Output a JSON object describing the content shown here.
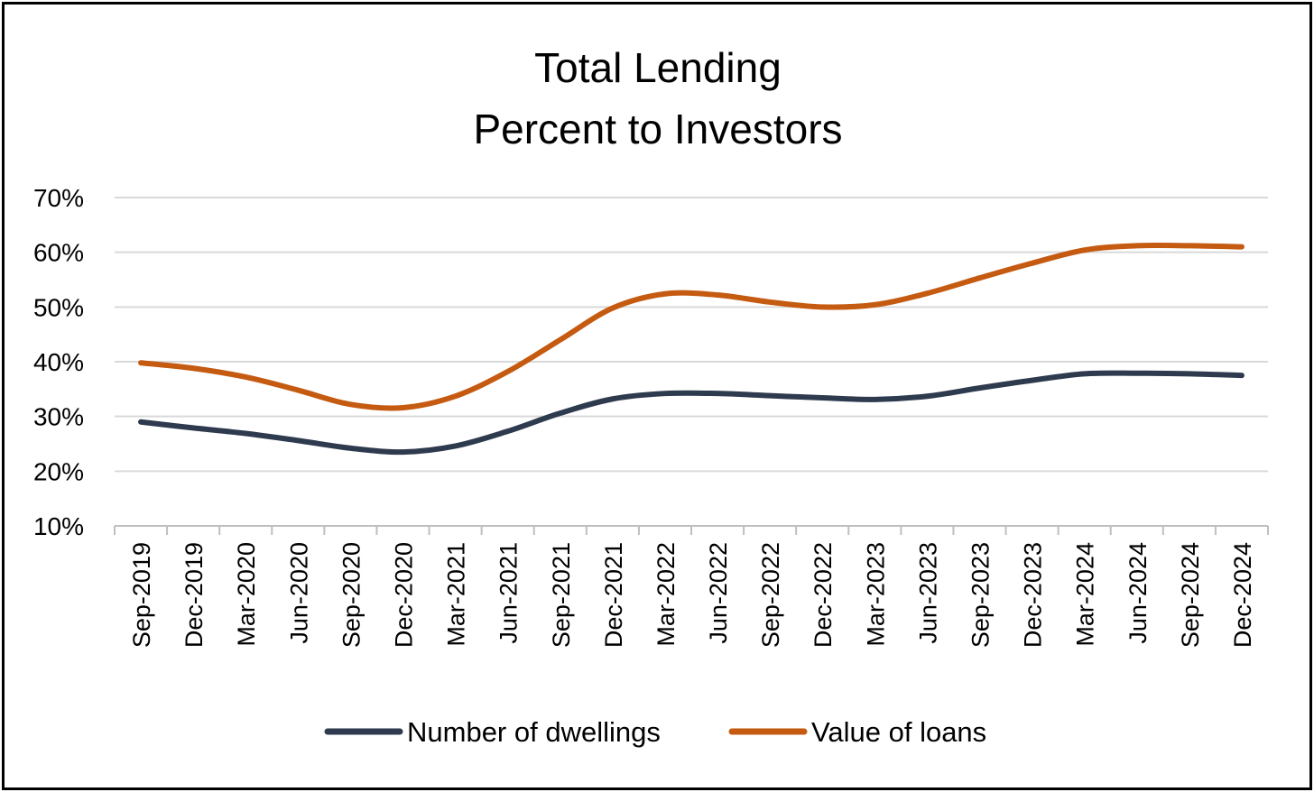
{
  "chart_data": {
    "type": "line",
    "title": "Total Lending",
    "subtitle": "Percent to Investors",
    "categories": [
      "Sep-2019",
      "Dec-2019",
      "Mar-2020",
      "Jun-2020",
      "Sep-2020",
      "Dec-2020",
      "Mar-2021",
      "Jun-2021",
      "Sep-2021",
      "Dec-2021",
      "Mar-2022",
      "Jun-2022",
      "Sep-2022",
      "Dec-2022",
      "Mar-2023",
      "Jun-2023",
      "Sep-2023",
      "Dec-2023",
      "Mar-2024",
      "Jun-2024",
      "Sep-2024",
      "Dec-2024"
    ],
    "yticks": [
      "10%",
      "20%",
      "30%",
      "40%",
      "50%",
      "60%",
      "70%"
    ],
    "ylim": [
      10,
      70
    ],
    "grid": true,
    "legend_position": "bottom",
    "series": [
      {
        "name": "Number of dwellings",
        "color": "#2e3a4e",
        "values": [
          29.0,
          27.9,
          26.9,
          25.6,
          24.2,
          23.5,
          24.6,
          27.3,
          30.6,
          33.2,
          34.2,
          34.2,
          33.8,
          33.4,
          33.1,
          33.7,
          35.2,
          36.6,
          37.8,
          37.9,
          37.8,
          37.5
        ]
      },
      {
        "name": "Value of loans",
        "color": "#c55a11",
        "values": [
          39.8,
          38.8,
          37.2,
          34.8,
          32.2,
          31.6,
          33.7,
          38.2,
          44.0,
          49.8,
          52.4,
          52.2,
          50.9,
          50.0,
          50.4,
          52.5,
          55.3,
          58.0,
          60.4,
          61.2,
          61.2,
          61.0
        ]
      }
    ]
  }
}
